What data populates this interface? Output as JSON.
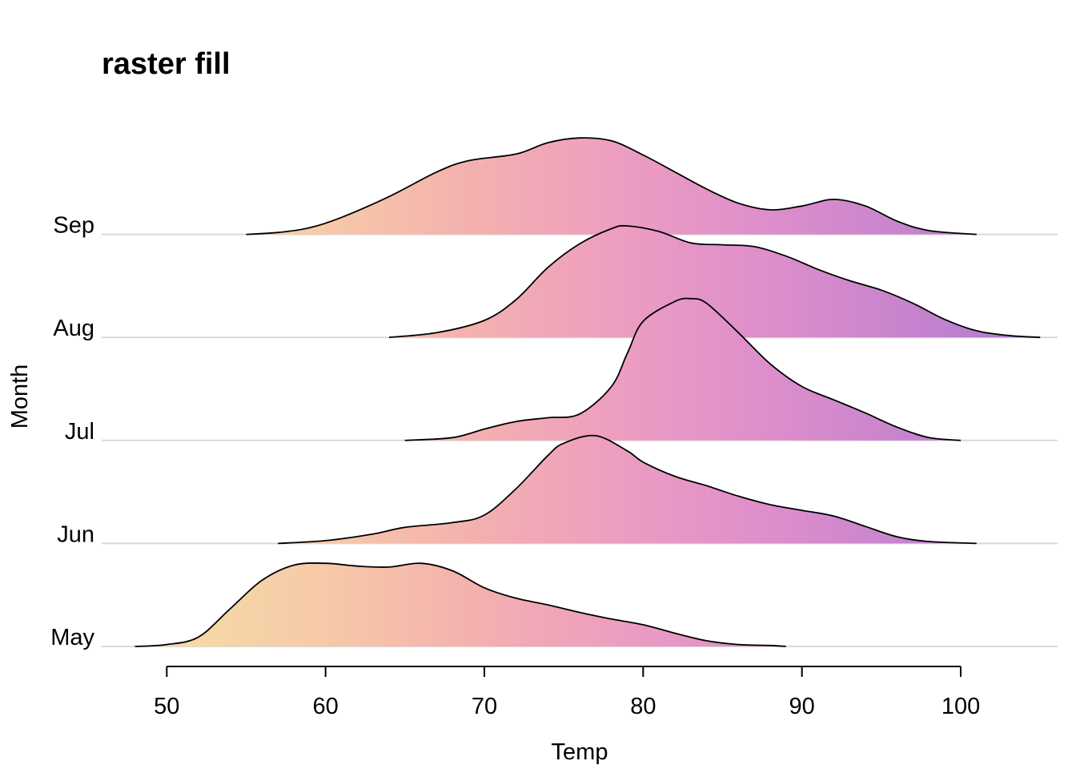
{
  "chart_data": {
    "type": "ridgeline",
    "title": "raster fill",
    "xlabel": "Temp",
    "ylabel": "Month",
    "xlim": [
      45.9,
      106.1
    ],
    "x_ticks": [
      50,
      60,
      70,
      80,
      90,
      100
    ],
    "x_tick_labels": [
      "50",
      "60",
      "70",
      "80",
      "90",
      "100"
    ],
    "gradient": {
      "x_range": [
        48,
        106
      ],
      "stops": [
        {
          "x": 48,
          "color": "#f5dfa6"
        },
        {
          "x": 60,
          "color": "#f7c9a8"
        },
        {
          "x": 70,
          "color": "#f3afaf"
        },
        {
          "x": 78,
          "color": "#ee9ec0"
        },
        {
          "x": 88,
          "color": "#dd8ecb"
        },
        {
          "x": 98,
          "color": "#c382ce"
        },
        {
          "x": 106,
          "color": "#a97ad1"
        }
      ]
    },
    "series": [
      {
        "name": "May",
        "x": [
          48,
          50,
          52,
          54,
          56,
          58,
          60,
          62,
          64,
          66,
          68,
          70,
          72,
          74,
          76,
          78,
          80,
          82,
          84,
          86,
          88,
          89
        ],
        "density": [
          0.0,
          0.02,
          0.1,
          0.4,
          0.7,
          0.86,
          0.88,
          0.85,
          0.84,
          0.88,
          0.8,
          0.62,
          0.51,
          0.44,
          0.36,
          0.29,
          0.23,
          0.14,
          0.06,
          0.02,
          0.01,
          0.0
        ]
      },
      {
        "name": "Jun",
        "x": [
          57,
          60,
          63,
          65,
          68,
          70,
          72,
          74,
          75,
          77,
          79,
          80,
          82,
          84,
          86,
          88,
          90,
          92,
          94,
          96,
          98,
          101
        ],
        "density": [
          0.0,
          0.03,
          0.1,
          0.17,
          0.22,
          0.3,
          0.58,
          0.93,
          1.06,
          1.14,
          0.98,
          0.86,
          0.71,
          0.61,
          0.5,
          0.41,
          0.35,
          0.29,
          0.18,
          0.07,
          0.02,
          0.0
        ]
      },
      {
        "name": "Jul",
        "x": [
          65,
          68,
          70,
          72,
          74,
          76,
          78,
          79,
          80,
          82,
          83,
          84,
          86,
          88,
          90,
          92,
          94,
          96,
          98,
          100
        ],
        "density": [
          0.0,
          0.03,
          0.12,
          0.2,
          0.24,
          0.28,
          0.57,
          0.92,
          1.26,
          1.47,
          1.5,
          1.45,
          1.14,
          0.81,
          0.57,
          0.43,
          0.29,
          0.14,
          0.03,
          0.0
        ]
      },
      {
        "name": "Aug",
        "x": [
          64,
          67,
          70,
          72,
          74,
          76,
          78,
          79,
          81,
          83,
          85,
          87,
          89,
          91,
          93,
          95,
          97,
          99,
          101,
          103,
          105
        ],
        "density": [
          0.0,
          0.05,
          0.18,
          0.4,
          0.74,
          0.99,
          1.15,
          1.18,
          1.12,
          1.0,
          0.98,
          0.96,
          0.86,
          0.72,
          0.6,
          0.5,
          0.36,
          0.19,
          0.07,
          0.02,
          0.0
        ]
      },
      {
        "name": "Sep",
        "x": [
          55,
          57,
          59,
          61,
          64,
          67,
          69,
          72,
          74,
          76,
          78,
          80,
          82,
          84,
          86,
          88,
          90,
          92,
          94,
          96,
          98,
          101
        ],
        "density": [
          0.0,
          0.02,
          0.07,
          0.18,
          0.4,
          0.66,
          0.78,
          0.85,
          0.97,
          1.02,
          0.99,
          0.84,
          0.66,
          0.48,
          0.33,
          0.26,
          0.3,
          0.37,
          0.3,
          0.14,
          0.04,
          0.0
        ]
      }
    ]
  }
}
